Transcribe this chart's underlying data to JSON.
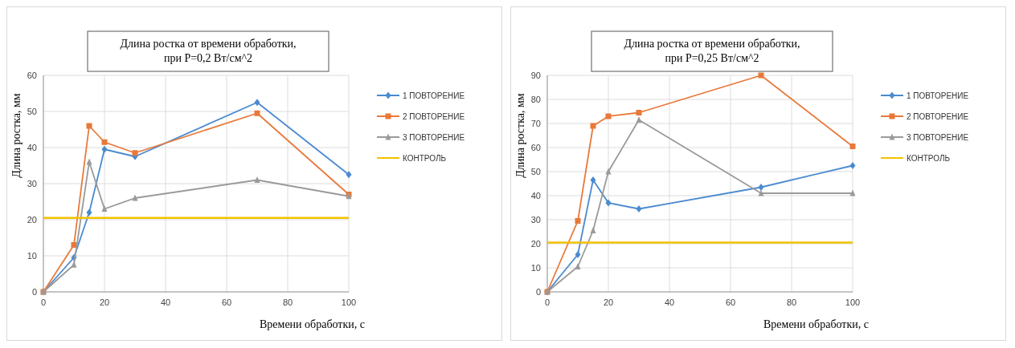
{
  "chart_data": [
    {
      "type": "line",
      "title": "Длина ростка от времени обработки,\nпри P=0,2 Вт/см^2",
      "xlabel": "Времени обработки, с",
      "ylabel": "Длина ростка, мм",
      "x": [
        0,
        10,
        15,
        20,
        30,
        70,
        100
      ],
      "xlim": [
        0,
        100
      ],
      "xticks": [
        0,
        20,
        40,
        60,
        80,
        100
      ],
      "ylim": [
        0,
        60
      ],
      "yticks": [
        0,
        10,
        20,
        30,
        40,
        50,
        60
      ],
      "grid": true,
      "legend": "right",
      "series": [
        {
          "name": "1 ПОВТОРЕНИЕ",
          "color": "#4a8ad0",
          "marker": "diamond",
          "values": [
            0,
            9.5,
            22,
            39.5,
            37.5,
            52.5,
            32.5
          ]
        },
        {
          "name": "2 ПОВТОРЕНИЕ",
          "color": "#e8793a",
          "marker": "square",
          "values": [
            0,
            13,
            46,
            41.5,
            38.5,
            49.5,
            27
          ]
        },
        {
          "name": "3 ПОВТОРЕНИЕ",
          "color": "#9a9a9a",
          "marker": "triangle",
          "values": [
            0,
            7.5,
            36,
            23,
            26,
            31,
            26.5
          ]
        },
        {
          "name": "КОНТРОЛЬ",
          "color": "#f2c200",
          "marker": "none",
          "values": [
            20.5,
            20.5,
            20.5,
            20.5,
            20.5,
            20.5,
            20.5
          ]
        }
      ]
    },
    {
      "type": "line",
      "title": "Длина ростка от времени обработки,\nпри P=0,25 Вт/см^2",
      "xlabel": "Времени обработки, с",
      "ylabel": "Длина ростка, мм",
      "x": [
        0,
        10,
        15,
        20,
        30,
        70,
        100
      ],
      "xlim": [
        0,
        100
      ],
      "xticks": [
        0,
        20,
        40,
        60,
        80,
        100
      ],
      "ylim": [
        0,
        90
      ],
      "yticks": [
        0,
        10,
        20,
        30,
        40,
        50,
        60,
        70,
        80,
        90
      ],
      "grid": true,
      "legend": "right",
      "series": [
        {
          "name": "1 ПОВТОРЕНИЕ",
          "color": "#4a8ad0",
          "marker": "diamond",
          "values": [
            0,
            15.5,
            46.5,
            37,
            34.5,
            43.5,
            52.5
          ]
        },
        {
          "name": "2 ПОВТОРЕНИЕ",
          "color": "#e8793a",
          "marker": "square",
          "values": [
            0,
            29.5,
            69,
            73,
            74.5,
            90,
            60.5
          ]
        },
        {
          "name": "3 ПОВТОРЕНИЕ",
          "color": "#9a9a9a",
          "marker": "triangle",
          "values": [
            0,
            10.5,
            25.5,
            50,
            71.5,
            41,
            41
          ]
        },
        {
          "name": "КОНТРОЛЬ",
          "color": "#f2c200",
          "marker": "none",
          "values": [
            20.5,
            20.5,
            20.5,
            20.5,
            20.5,
            20.5,
            20.5
          ]
        }
      ]
    }
  ]
}
